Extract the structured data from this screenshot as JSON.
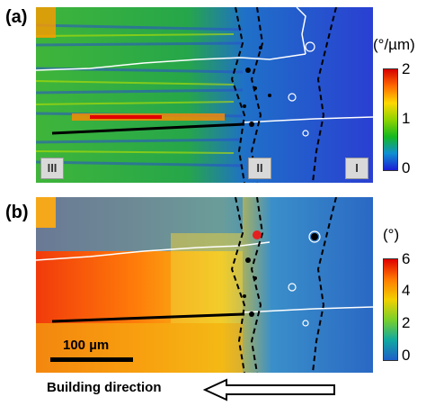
{
  "panels": {
    "a": {
      "label": "(a)",
      "unit": "(°/µm)",
      "ticks": [
        "2",
        "1",
        "0"
      ]
    },
    "b": {
      "label": "(b)",
      "unit": "(°)",
      "ticks": [
        "6",
        "4",
        "2",
        "0"
      ]
    }
  },
  "zones": [
    "III",
    "II",
    "I"
  ],
  "scalebar": {
    "label": "100 µm"
  },
  "direction": {
    "label": "Building direction"
  }
}
